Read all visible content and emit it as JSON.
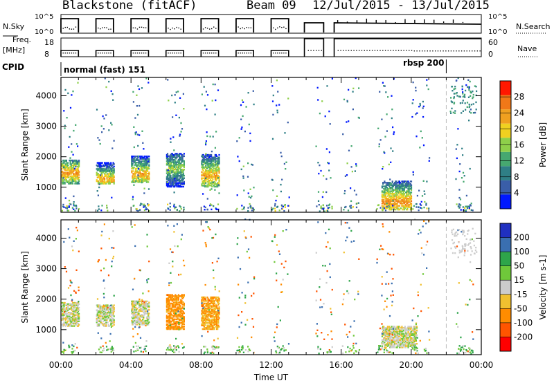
{
  "header": {
    "title": "Blackstone (fitACF)",
    "beam": "Beam 09",
    "date_range": "12/Jul/2015 - 13/Jul/2015"
  },
  "status_panels": {
    "nsky_label": "N.Sky",
    "nsky_ticks": [
      "10^5",
      "10^0"
    ],
    "nsearch_label": "N.Search",
    "nsearch_ticks": [
      "10^5",
      "10^0"
    ],
    "freq_label": "Freq.",
    "freq_unit": "[MHz]",
    "freq_ticks": [
      "18",
      "8"
    ],
    "nave_label": "Nave",
    "nave_ticks": [
      "60",
      "0"
    ],
    "cpid_label": "CPID",
    "cpid_mode_1": "normal (fast) 151",
    "cpid_mode_2": "rbsp 200"
  },
  "colors": {
    "power": [
      "#0018ff",
      "#3a5ea8",
      "#2f7f86",
      "#46a870",
      "#8ed04a",
      "#f0d020",
      "#f0a020",
      "#f07818",
      "#ff1800"
    ],
    "velocity": [
      "#ff0000",
      "#ff5500",
      "#ff8c00",
      "#f0c030",
      "#cccccc",
      "#6fc83a",
      "#2ea54a",
      "#3a6fb0",
      "#2030c0"
    ]
  },
  "chart_data": [
    {
      "type": "heatmap",
      "panel": "power",
      "ylabel": "Slant Range [km]",
      "y_ticks": [
        "1000",
        "2000",
        "3000",
        "4000"
      ],
      "ylim": [
        180,
        4600
      ],
      "xlim": [
        0,
        24
      ],
      "colorbar_label": "Power [dB]",
      "colorbar_ticks": [
        "4",
        "8",
        "12",
        "16",
        "20",
        "24",
        "28"
      ],
      "colorbar_range": [
        0,
        30
      ],
      "blocks": [
        {
          "t0": 0.0,
          "t1": 1.0,
          "r0": 1100,
          "r1": 1900,
          "core": 1450,
          "v": 23
        },
        {
          "t0": 2.0,
          "t1": 3.0,
          "r0": 1100,
          "r1": 1800,
          "core": 1250,
          "v": 22
        },
        {
          "t0": 4.0,
          "t1": 5.0,
          "r0": 1150,
          "r1": 2000,
          "core": 1400,
          "v": 22
        },
        {
          "t0": 6.0,
          "t1": 7.0,
          "r0": 1000,
          "r1": 2100,
          "core": 1600,
          "v": 16
        },
        {
          "t0": 8.0,
          "t1": 9.0,
          "r0": 1000,
          "r1": 2050,
          "core": 1350,
          "v": 22
        },
        {
          "t0": 18.3,
          "t1": 20.0,
          "r0": 250,
          "r1": 1200,
          "core": 500,
          "v": 24
        }
      ]
    },
    {
      "type": "heatmap",
      "panel": "velocity",
      "xlabel": "Time UT",
      "x_ticks": [
        "00:00",
        "04:00",
        "08:00",
        "12:00",
        "16:00",
        "20:00",
        "00:00"
      ],
      "ylabel": "Slant Range [km]",
      "y_ticks": [
        "1000",
        "2000",
        "3000",
        "4000"
      ],
      "ylim": [
        180,
        4600
      ],
      "xlim": [
        0,
        24
      ],
      "colorbar_label": "Velocity [m s-1]",
      "colorbar_ticks": [
        "-200",
        "-100",
        "-50",
        "-15",
        "15",
        "50",
        "100",
        "200"
      ],
      "blocks": [
        {
          "t0": 0.0,
          "t1": 1.0,
          "r0": 1100,
          "r1": 1900,
          "v": 0
        },
        {
          "t0": 2.0,
          "t1": 3.0,
          "r0": 1100,
          "r1": 1800,
          "v": 0
        },
        {
          "t0": 4.0,
          "t1": 5.0,
          "r0": 1150,
          "r1": 1950,
          "v": 0
        },
        {
          "t0": 6.0,
          "t1": 7.0,
          "r0": 1000,
          "r1": 2150,
          "v": -70
        },
        {
          "t0": 8.0,
          "t1": 9.0,
          "r0": 1000,
          "r1": 2050,
          "v": -50
        },
        {
          "t0": 18.3,
          "t1": 20.3,
          "r0": 400,
          "r1": 1100,
          "v": 0
        }
      ]
    }
  ]
}
